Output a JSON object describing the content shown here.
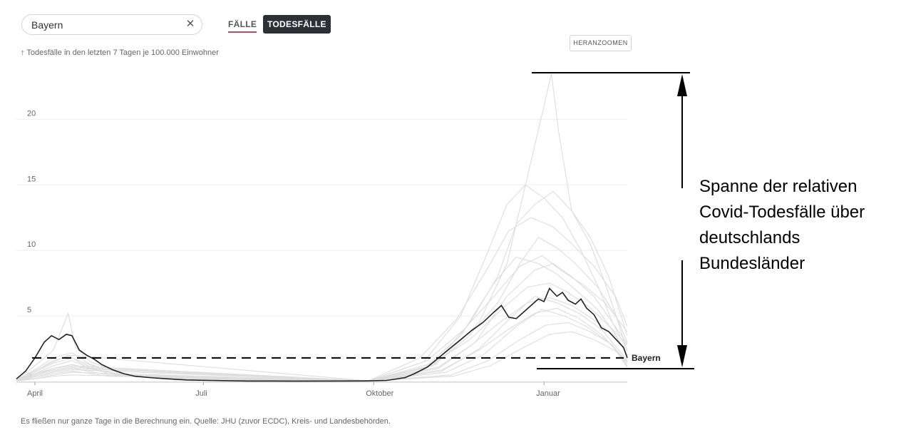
{
  "search": {
    "value": "Bayern",
    "clear_icon": "close-icon"
  },
  "tabs": [
    {
      "label": "FÄLLE",
      "active": false
    },
    {
      "label": "TODESFÄLLE",
      "active": true
    }
  ],
  "zoom_label": "HERANZOOMEN",
  "y_axis_label": "↑ Todesfälle in den letzten 7 Tagen je 100.000 Einwohner",
  "footer": "Es fließen nur ganze Tage in die Berechnung ein. Quelle: JHU (zuvor ECDC), Kreis- und Landesbehörden.",
  "annotation": [
    "Spanne der relativen",
    "Covid-Todesfälle über",
    "deutschlands",
    "Bundesländer"
  ],
  "colors": {
    "highlight": "#222222",
    "others": "#dddddd",
    "grid": "#eeeeee",
    "accent": "#b04a6e"
  },
  "chart_data": {
    "type": "line",
    "title": "",
    "xlabel": "",
    "ylabel": "Todesfälle in den letzten 7 Tagen je 100.000 Einwohner",
    "x_range": [
      0,
      330
    ],
    "ylim": [
      0,
      23.5
    ],
    "y_ticks": [
      0,
      5,
      10,
      15,
      20
    ],
    "x_ticks": [
      {
        "label": "April",
        "x": 10
      },
      {
        "label": "Juli",
        "x": 101
      },
      {
        "label": "Oktober",
        "x": 193
      },
      {
        "label": "Januar",
        "x": 285
      }
    ],
    "grid": true,
    "highlight_series": {
      "name": "Bayern",
      "points": [
        [
          0,
          0.2
        ],
        [
          5,
          0.8
        ],
        [
          10,
          1.8
        ],
        [
          15,
          3.0
        ],
        [
          19,
          3.5
        ],
        [
          23,
          3.2
        ],
        [
          27,
          3.6
        ],
        [
          30,
          3.5
        ],
        [
          34,
          2.4
        ],
        [
          38,
          2.0
        ],
        [
          42,
          1.7
        ],
        [
          46,
          1.3
        ],
        [
          52,
          0.9
        ],
        [
          58,
          0.6
        ],
        [
          64,
          0.4
        ],
        [
          72,
          0.3
        ],
        [
          82,
          0.2
        ],
        [
          92,
          0.12
        ],
        [
          105,
          0.08
        ],
        [
          125,
          0.04
        ],
        [
          150,
          0.03
        ],
        [
          175,
          0.04
        ],
        [
          190,
          0.05
        ],
        [
          200,
          0.08
        ],
        [
          210,
          0.3
        ],
        [
          215,
          0.6
        ],
        [
          222,
          1.1
        ],
        [
          228,
          1.8
        ],
        [
          234,
          2.5
        ],
        [
          240,
          3.2
        ],
        [
          246,
          3.9
        ],
        [
          252,
          4.5
        ],
        [
          258,
          5.3
        ],
        [
          262,
          5.8
        ],
        [
          266,
          4.9
        ],
        [
          270,
          4.8
        ],
        [
          274,
          5.3
        ],
        [
          278,
          5.8
        ],
        [
          282,
          6.3
        ],
        [
          285,
          6.1
        ],
        [
          288,
          7.1
        ],
        [
          292,
          6.5
        ],
        [
          295,
          6.8
        ],
        [
          298,
          6.2
        ],
        [
          302,
          5.9
        ],
        [
          305,
          6.3
        ],
        [
          308,
          5.6
        ],
        [
          312,
          5.1
        ],
        [
          316,
          4.1
        ],
        [
          320,
          3.8
        ],
        [
          324,
          3.2
        ],
        [
          328,
          2.6
        ],
        [
          330,
          1.8
        ]
      ]
    },
    "other_series": [
      {
        "points": [
          [
            0,
            0.1
          ],
          [
            10,
            1.2
          ],
          [
            20,
            2.4
          ],
          [
            28,
            5.2
          ],
          [
            32,
            2.6
          ],
          [
            40,
            1.5
          ],
          [
            60,
            0.5
          ],
          [
            100,
            0.1
          ],
          [
            190,
            0.05
          ],
          [
            215,
            0.5
          ],
          [
            230,
            1.8
          ],
          [
            250,
            4.5
          ],
          [
            265,
            9.0
          ],
          [
            275,
            15.0
          ],
          [
            285,
            21.0
          ],
          [
            289,
            23.5
          ],
          [
            293,
            19.0
          ],
          [
            300,
            13.0
          ],
          [
            310,
            10.5
          ],
          [
            318,
            7.5
          ],
          [
            324,
            5.0
          ],
          [
            330,
            2.3
          ]
        ]
      },
      {
        "points": [
          [
            0,
            0.1
          ],
          [
            10,
            0.8
          ],
          [
            20,
            1.5
          ],
          [
            28,
            2.0
          ],
          [
            35,
            1.4
          ],
          [
            50,
            0.6
          ],
          [
            80,
            0.2
          ],
          [
            190,
            0.05
          ],
          [
            220,
            1.5
          ],
          [
            240,
            5.0
          ],
          [
            255,
            10.0
          ],
          [
            265,
            13.5
          ],
          [
            275,
            15.0
          ],
          [
            285,
            14.0
          ],
          [
            295,
            12.5
          ],
          [
            305,
            10.0
          ],
          [
            315,
            7.0
          ],
          [
            322,
            4.5
          ],
          [
            330,
            2.4
          ]
        ]
      },
      {
        "points": [
          [
            0,
            0.1
          ],
          [
            10,
            0.6
          ],
          [
            20,
            1.2
          ],
          [
            30,
            1.6
          ],
          [
            40,
            1.0
          ],
          [
            60,
            0.4
          ],
          [
            100,
            0.1
          ],
          [
            190,
            0.05
          ],
          [
            225,
            1.2
          ],
          [
            245,
            4.5
          ],
          [
            260,
            8.0
          ],
          [
            270,
            12.0
          ],
          [
            280,
            13.5
          ],
          [
            290,
            14.5
          ],
          [
            300,
            13.0
          ],
          [
            310,
            11.0
          ],
          [
            320,
            8.0
          ],
          [
            330,
            3.5
          ]
        ]
      },
      {
        "points": [
          [
            0,
            0.1
          ],
          [
            10,
            0.5
          ],
          [
            20,
            1.0
          ],
          [
            30,
            1.3
          ],
          [
            45,
            0.8
          ],
          [
            70,
            0.3
          ],
          [
            190,
            0.05
          ],
          [
            228,
            1.0
          ],
          [
            248,
            3.0
          ],
          [
            265,
            6.5
          ],
          [
            280,
            8.5
          ],
          [
            290,
            9.0
          ],
          [
            300,
            8.0
          ],
          [
            312,
            6.5
          ],
          [
            322,
            4.5
          ],
          [
            330,
            2.9
          ]
        ]
      },
      {
        "points": [
          [
            0,
            0.1
          ],
          [
            10,
            0.9
          ],
          [
            20,
            1.8
          ],
          [
            30,
            2.2
          ],
          [
            40,
            1.3
          ],
          [
            60,
            0.5
          ],
          [
            190,
            0.05
          ],
          [
            220,
            1.0
          ],
          [
            240,
            3.5
          ],
          [
            258,
            7.5
          ],
          [
            270,
            9.5
          ],
          [
            282,
            9.0
          ],
          [
            292,
            8.2
          ],
          [
            302,
            7.0
          ],
          [
            314,
            5.5
          ],
          [
            324,
            3.5
          ],
          [
            330,
            2.0
          ]
        ]
      },
      {
        "points": [
          [
            0,
            0.1
          ],
          [
            10,
            0.4
          ],
          [
            20,
            0.8
          ],
          [
            30,
            1.0
          ],
          [
            50,
            0.5
          ],
          [
            190,
            0.04
          ],
          [
            230,
            0.8
          ],
          [
            250,
            2.5
          ],
          [
            268,
            5.0
          ],
          [
            280,
            6.5
          ],
          [
            292,
            6.0
          ],
          [
            304,
            5.2
          ],
          [
            316,
            4.0
          ],
          [
            330,
            1.6
          ]
        ]
      },
      {
        "points": [
          [
            0,
            0.05
          ],
          [
            10,
            0.3
          ],
          [
            20,
            0.6
          ],
          [
            30,
            0.8
          ],
          [
            50,
            0.4
          ],
          [
            190,
            0.03
          ],
          [
            232,
            0.7
          ],
          [
            252,
            2.0
          ],
          [
            270,
            4.2
          ],
          [
            284,
            5.5
          ],
          [
            296,
            5.0
          ],
          [
            308,
            4.2
          ],
          [
            320,
            3.0
          ],
          [
            330,
            1.4
          ]
        ]
      },
      {
        "points": [
          [
            0,
            0.1
          ],
          [
            10,
            0.7
          ],
          [
            20,
            1.4
          ],
          [
            30,
            1.8
          ],
          [
            45,
            1.0
          ],
          [
            190,
            0.05
          ],
          [
            225,
            1.4
          ],
          [
            245,
            3.2
          ],
          [
            262,
            5.5
          ],
          [
            276,
            7.2
          ],
          [
            288,
            7.5
          ],
          [
            298,
            6.8
          ],
          [
            310,
            5.6
          ],
          [
            322,
            4.0
          ],
          [
            330,
            2.8
          ]
        ]
      },
      {
        "points": [
          [
            0,
            0.05
          ],
          [
            10,
            0.2
          ],
          [
            20,
            0.5
          ],
          [
            30,
            0.7
          ],
          [
            190,
            0.03
          ],
          [
            235,
            0.5
          ],
          [
            255,
            1.6
          ],
          [
            272,
            3.2
          ],
          [
            286,
            4.3
          ],
          [
            298,
            4.5
          ],
          [
            310,
            3.8
          ],
          [
            322,
            2.8
          ],
          [
            330,
            1.2
          ]
        ]
      },
      {
        "points": [
          [
            0,
            0.1
          ],
          [
            10,
            0.6
          ],
          [
            20,
            1.0
          ],
          [
            30,
            1.2
          ],
          [
            190,
            0.05
          ],
          [
            222,
            1.6
          ],
          [
            242,
            4.0
          ],
          [
            258,
            6.5
          ],
          [
            272,
            8.8
          ],
          [
            284,
            9.6
          ],
          [
            294,
            8.5
          ],
          [
            306,
            7.4
          ],
          [
            318,
            6.0
          ],
          [
            330,
            3.8
          ]
        ]
      },
      {
        "points": [
          [
            0,
            0.05
          ],
          [
            10,
            0.3
          ],
          [
            20,
            0.7
          ],
          [
            30,
            0.9
          ],
          [
            190,
            0.03
          ],
          [
            230,
            0.9
          ],
          [
            250,
            2.4
          ],
          [
            266,
            4.0
          ],
          [
            280,
            5.2
          ],
          [
            292,
            5.6
          ],
          [
            304,
            4.8
          ],
          [
            316,
            3.6
          ],
          [
            330,
            1.5
          ]
        ]
      },
      {
        "points": [
          [
            0,
            0.1
          ],
          [
            10,
            0.5
          ],
          [
            20,
            0.9
          ],
          [
            30,
            1.1
          ],
          [
            190,
            0.04
          ],
          [
            226,
            1.3
          ],
          [
            244,
            3.4
          ],
          [
            260,
            6.0
          ],
          [
            272,
            9.0
          ],
          [
            282,
            11.0
          ],
          [
            292,
            10.2
          ],
          [
            302,
            9.0
          ],
          [
            314,
            7.2
          ],
          [
            324,
            5.0
          ],
          [
            330,
            3.0
          ]
        ]
      },
      {
        "points": [
          [
            0,
            0.05
          ],
          [
            10,
            0.2
          ],
          [
            20,
            0.4
          ],
          [
            30,
            0.5
          ],
          [
            190,
            0.02
          ],
          [
            236,
            0.4
          ],
          [
            256,
            1.2
          ],
          [
            274,
            2.6
          ],
          [
            288,
            3.6
          ],
          [
            300,
            3.8
          ],
          [
            312,
            3.2
          ],
          [
            324,
            2.3
          ],
          [
            330,
            1.1
          ]
        ]
      },
      {
        "points": [
          [
            0,
            0.1
          ],
          [
            10,
            0.8
          ],
          [
            20,
            1.6
          ],
          [
            30,
            2.0
          ],
          [
            190,
            0.05
          ],
          [
            218,
            1.8
          ],
          [
            238,
            4.8
          ],
          [
            254,
            8.5
          ],
          [
            266,
            11.5
          ],
          [
            278,
            12.5
          ],
          [
            290,
            11.8
          ],
          [
            300,
            10.5
          ],
          [
            312,
            8.8
          ],
          [
            324,
            6.4
          ],
          [
            330,
            4.2
          ]
        ]
      },
      {
        "points": [
          [
            0,
            0.05
          ],
          [
            10,
            0.4
          ],
          [
            20,
            0.8
          ],
          [
            30,
            1.0
          ],
          [
            190,
            0.04
          ],
          [
            228,
            1.1
          ],
          [
            246,
            2.8
          ],
          [
            262,
            4.6
          ],
          [
            276,
            6.0
          ],
          [
            288,
            6.4
          ],
          [
            300,
            5.8
          ],
          [
            312,
            4.7
          ],
          [
            324,
            3.4
          ],
          [
            330,
            2.0
          ]
        ]
      }
    ],
    "reference_line": {
      "y": 1.8,
      "style": "dashed"
    },
    "range_annotation": {
      "min": 1.8,
      "max": 23.5,
      "bounds": "min/max of states"
    }
  }
}
